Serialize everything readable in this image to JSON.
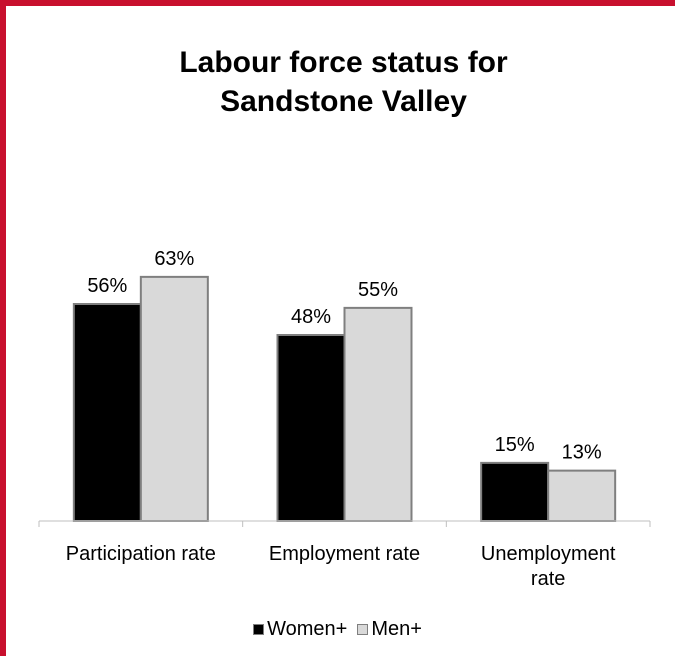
{
  "chart_data": {
    "type": "bar",
    "title": [
      "Labour force status for",
      "Sandstone Valley"
    ],
    "categories": [
      [
        "Participation rate"
      ],
      [
        "Employment rate"
      ],
      [
        "Unemployment",
        "rate"
      ]
    ],
    "series": [
      {
        "name": "Women+",
        "color": "#000000",
        "values": [
          56,
          48,
          15
        ],
        "labels": [
          "56%",
          "48%",
          "15%"
        ]
      },
      {
        "name": "Men+",
        "color": "#d9d9d9",
        "values": [
          63,
          55,
          13
        ],
        "labels": [
          "63%",
          "55%",
          "13%"
        ]
      }
    ],
    "value_unit": "%",
    "xlabel": "",
    "ylabel": "",
    "ylim": [
      0,
      100
    ],
    "grid": false,
    "legend_position": "bottom",
    "frame_color": "#c8102e",
    "bar_outline_color": "#7f7f7f"
  }
}
